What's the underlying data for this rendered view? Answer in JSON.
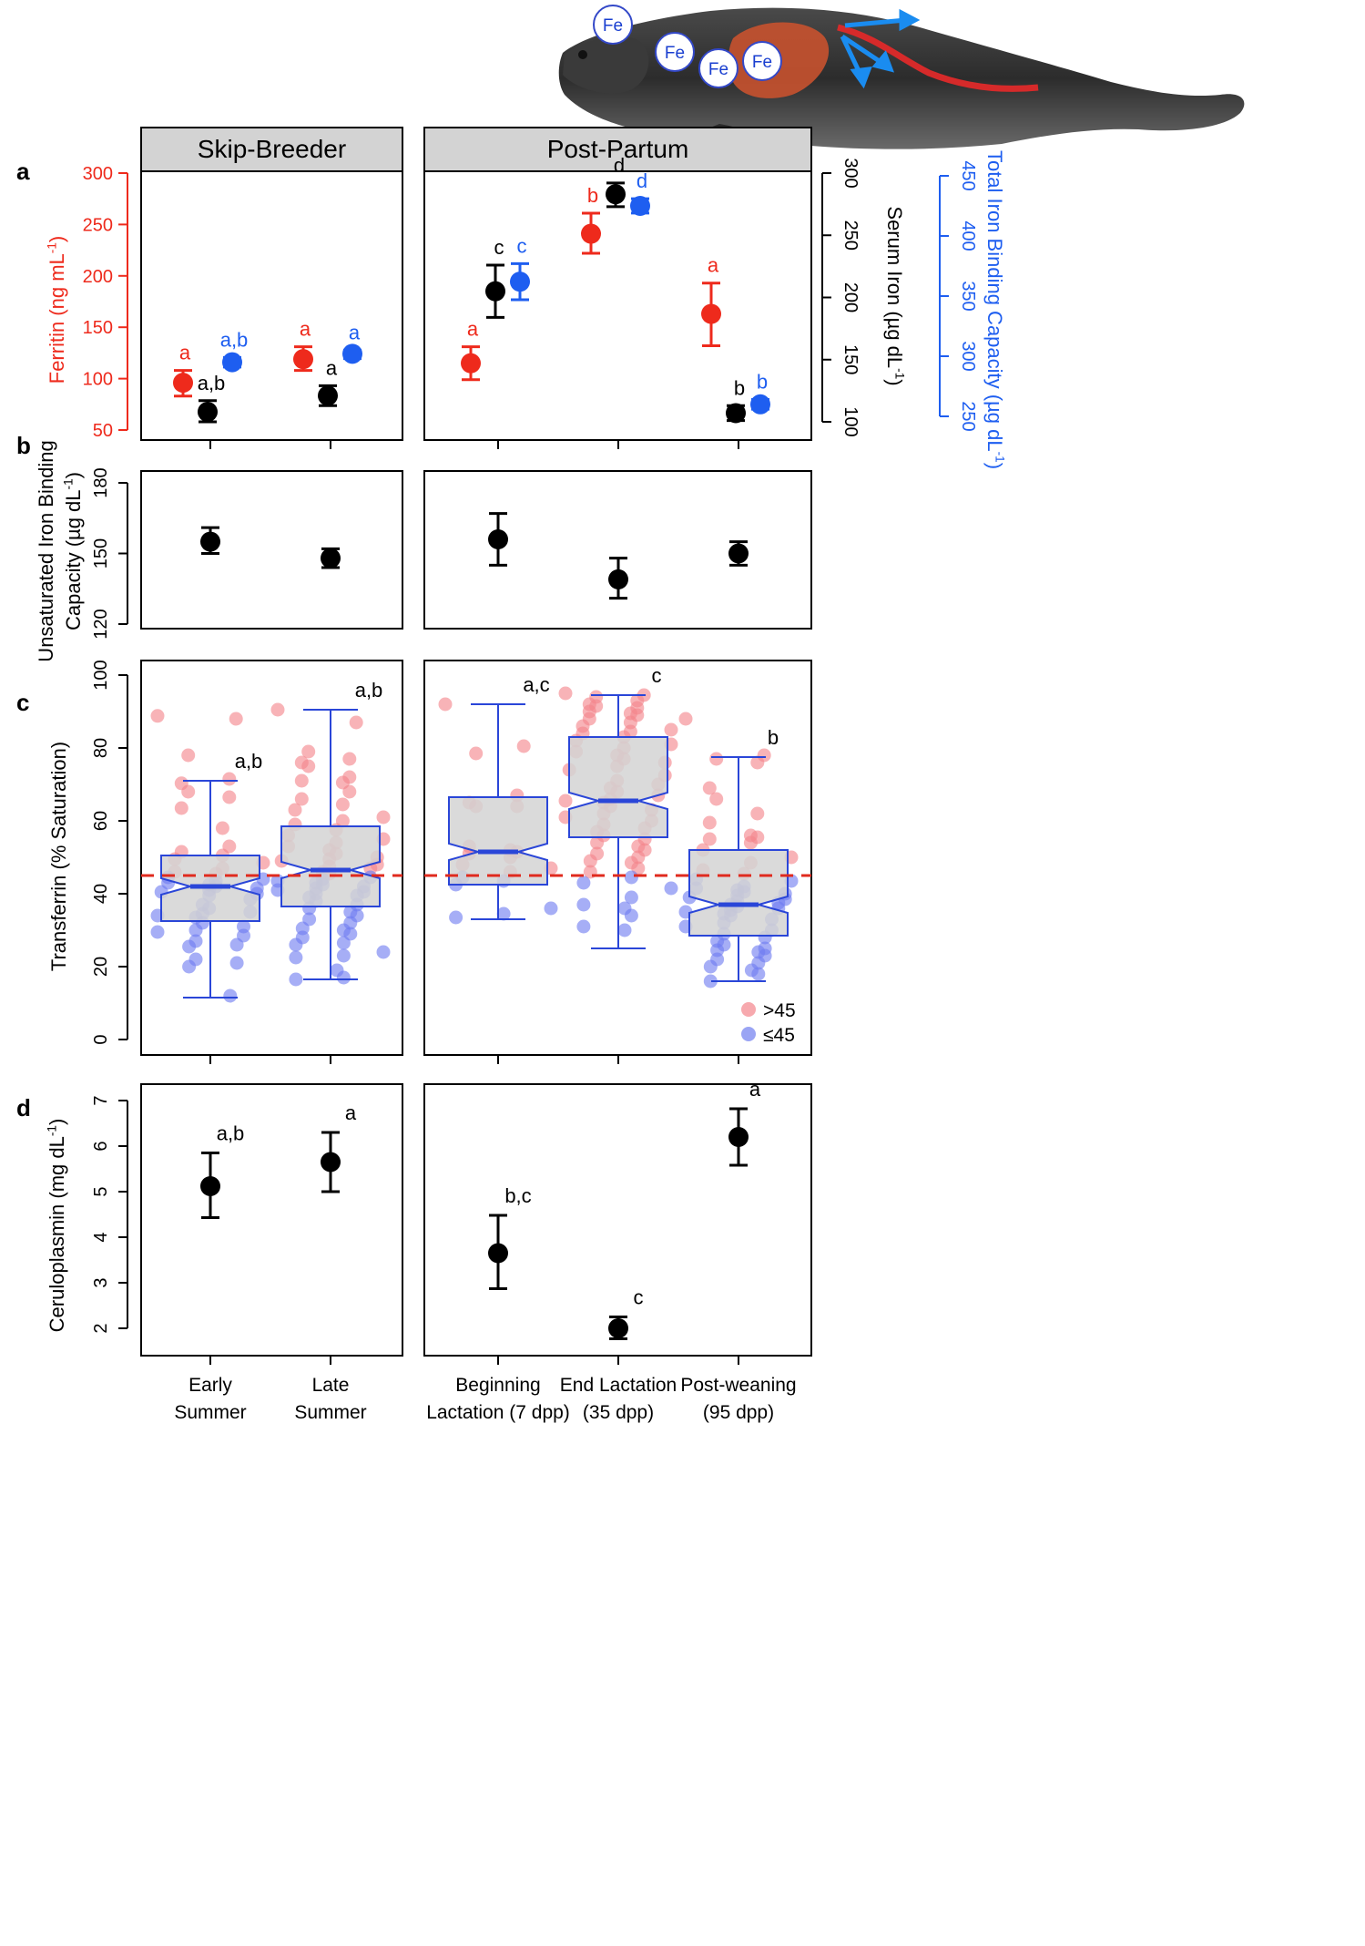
{
  "figure": {
    "panel_letters": [
      "a",
      "b",
      "c",
      "d"
    ],
    "facets": [
      "Skip-Breeder",
      "Post-Partum"
    ],
    "x_labels": [
      [
        "Early",
        "Summer"
      ],
      [
        "Late",
        "Summer"
      ],
      [
        "Beginning",
        "Lactation (7 dpp)"
      ],
      [
        "End Lactation",
        "(35 dpp)"
      ],
      [
        "Post-weaning",
        "(95 dpp)"
      ]
    ],
    "seal_iron_labels": [
      "Fe",
      "Fe",
      "Fe",
      "Fe"
    ],
    "colors": {
      "ferritin": "#ee2a1c",
      "serum_iron": "#000000",
      "tibc": "#1e5ef0",
      "box_fill": "#d3d3d3",
      "box_border": "#2a46d8",
      "threshold": "#e02a1e",
      "high_pts": "#f4858b",
      "low_pts": "#6f7df0"
    }
  },
  "chart_data": [
    {
      "panel": "a",
      "type": "scatter",
      "title": "",
      "groups": [
        "Early Summer",
        "Late Summer",
        "Beginning Lactation (7 dpp)",
        "End Lactation (35 dpp)",
        "Post-weaning (95 dpp)"
      ],
      "axes": {
        "ferritin": {
          "label": "Ferritin (ng mL",
          "sup": "-1",
          "close": ")",
          "ylim": [
            50,
            300
          ],
          "ticks": [
            50,
            100,
            150,
            200,
            250,
            300
          ]
        },
        "serum_iron": {
          "label": "Serum Iron (µg dL",
          "sup": "-1",
          "close": ")",
          "ylim": [
            100,
            300
          ],
          "ticks": [
            100,
            150,
            200,
            250,
            300
          ]
        },
        "tibc": {
          "label": "Total Iron Binding Capacity (µg dL",
          "sup": "-1",
          "close": ")",
          "ylim": [
            250,
            450
          ],
          "ticks": [
            250,
            300,
            350,
            400,
            450
          ]
        }
      },
      "series": [
        {
          "name": "Ferritin",
          "axis": "ferritin",
          "values": [
            96,
            119,
            115,
            241,
            163
          ],
          "err_low": [
            83,
            108,
            99,
            222,
            132
          ],
          "err_high": [
            108,
            131,
            131,
            261,
            193
          ],
          "letters": [
            "a",
            "a",
            "a",
            "b",
            "a"
          ]
        },
        {
          "name": "Serum Iron",
          "axis": "serum_iron",
          "values": [
            108,
            121,
            205,
            283,
            107
          ],
          "err_low": [
            100,
            113,
            184,
            273,
            101
          ],
          "err_high": [
            117,
            129,
            226,
            292,
            113
          ],
          "letters": [
            "a,b",
            "a",
            "c",
            "d",
            "b"
          ]
        },
        {
          "name": "Total Iron Binding Capacity",
          "axis": "tibc",
          "values": [
            295,
            302,
            362,
            425,
            260
          ],
          "err_low": [
            291,
            298,
            347,
            419,
            256
          ],
          "err_high": [
            299,
            305,
            377,
            431,
            264
          ],
          "letters": [
            "a,b",
            "a",
            "c",
            "d",
            "b"
          ]
        }
      ]
    },
    {
      "panel": "b",
      "type": "scatter",
      "ylabel_lines": [
        "Unsaturated Iron Binding",
        "Capacity (µg dL"
      ],
      "ylabel_sup": "-1",
      "ylabel_close": ")",
      "ylim": [
        120,
        180
      ],
      "ticks": [
        120,
        150,
        180
      ],
      "values": [
        155,
        148,
        156,
        139,
        150
      ],
      "err_low": [
        150,
        144,
        145,
        131,
        145
      ],
      "err_high": [
        161,
        152,
        167,
        148,
        155
      ]
    },
    {
      "panel": "c",
      "type": "box",
      "ylabel": "Transferrin (% Saturation)",
      "ylim": [
        0,
        100
      ],
      "ticks": [
        0,
        20,
        40,
        60,
        80,
        100
      ],
      "threshold": 45,
      "legend": [
        ">45",
        "≤45"
      ],
      "boxes": [
        {
          "whisker_low": 11.5,
          "q1": 32.5,
          "median": 42,
          "q3": 50.5,
          "whisker_high": 71,
          "letter": "a,b"
        },
        {
          "whisker_low": 16.5,
          "q1": 36.5,
          "median": 46.5,
          "q3": 58.5,
          "whisker_high": 90.5,
          "letter": "a,b"
        },
        {
          "whisker_low": 33,
          "q1": 42.5,
          "median": 51.5,
          "q3": 66.5,
          "whisker_high": 92,
          "letter": "a,c"
        },
        {
          "whisker_low": 25,
          "q1": 55.5,
          "median": 65.5,
          "q3": 83,
          "whisker_high": 94.5,
          "letter": "c"
        },
        {
          "whisker_low": 16,
          "q1": 28.5,
          "median": 37,
          "q3": 52,
          "whisker_high": 77.5,
          "letter": "b"
        }
      ],
      "points": [
        [
          88.8,
          88,
          78,
          71.5,
          70.3,
          68,
          66.5,
          63.5,
          58,
          53,
          51.5,
          50.5,
          49.5,
          48.5,
          47,
          46,
          45.5,
          44.5,
          44,
          43.5,
          43,
          42.5,
          42,
          41.5,
          41,
          40.5,
          40,
          39.5,
          38.5,
          37,
          36,
          35,
          34.5,
          34,
          33.5,
          32,
          31,
          30,
          29.5,
          28.5,
          27,
          26,
          25.5,
          22,
          21,
          20,
          12
        ],
        [
          90.5,
          87,
          79,
          77,
          76,
          75,
          72,
          71,
          70.5,
          68,
          66,
          64.5,
          63,
          61,
          60,
          59,
          57.5,
          56,
          55,
          54,
          53,
          52,
          51,
          50,
          49.5,
          49,
          48,
          47.5,
          47,
          46,
          45.5,
          44.5,
          44,
          43.5,
          43,
          42.5,
          42,
          41.5,
          41,
          40.5,
          40,
          39.5,
          39,
          38,
          37,
          36,
          35,
          34,
          33,
          32,
          30.5,
          30,
          29,
          28,
          26.5,
          26,
          24,
          23,
          22.5,
          19,
          17,
          16.5
        ],
        [
          92,
          80.5,
          78.5,
          67,
          65,
          64,
          64,
          53,
          52,
          51.5,
          51,
          50,
          48,
          47,
          46,
          44.5,
          43.5,
          42.5,
          36,
          34.5,
          33.5
        ],
        [
          95,
          94.5,
          94,
          93,
          92,
          91.5,
          91,
          90,
          89.5,
          89,
          88,
          87,
          86,
          85,
          84.5,
          84,
          83,
          82,
          81,
          80,
          79,
          78,
          77,
          76,
          75,
          74,
          72.5,
          71,
          70,
          69,
          68,
          67,
          66,
          65.5,
          65,
          64,
          63,
          62,
          61,
          60,
          59,
          58,
          57,
          56,
          55,
          54,
          53,
          52,
          51,
          50,
          49,
          48.5,
          47,
          46,
          44.5,
          43,
          41.5,
          39,
          37,
          36,
          34,
          31,
          30
        ],
        [
          88,
          78,
          77,
          76,
          69,
          66,
          62,
          59.5,
          56,
          55.5,
          55,
          54,
          52,
          50,
          48.5,
          46.5,
          45.5,
          44,
          43.5,
          42,
          41.5,
          41,
          40.5,
          40,
          39.5,
          39,
          38.5,
          38,
          37.5,
          37,
          36.5,
          36,
          35.5,
          35,
          34.5,
          34,
          33,
          32,
          31,
          30,
          29,
          28,
          27,
          26,
          25,
          24.5,
          24,
          23,
          22,
          21,
          20,
          19,
          18,
          16
        ]
      ]
    },
    {
      "panel": "d",
      "type": "scatter",
      "ylabel": "Ceruloplasmin (mg dL",
      "ylabel_sup": "-1",
      "ylabel_close": ")",
      "ylim": [
        1.8,
        7.1
      ],
      "ticks": [
        2,
        3,
        4,
        5,
        6,
        7
      ],
      "values": [
        5.12,
        5.65,
        3.65,
        2.0,
        6.2
      ],
      "err_low": [
        4.43,
        5.0,
        2.87,
        1.77,
        5.58
      ],
      "err_high": [
        5.85,
        6.3,
        4.48,
        2.25,
        6.82
      ],
      "letters": [
        "a,b",
        "a",
        "b,c",
        "c",
        "a"
      ]
    }
  ]
}
